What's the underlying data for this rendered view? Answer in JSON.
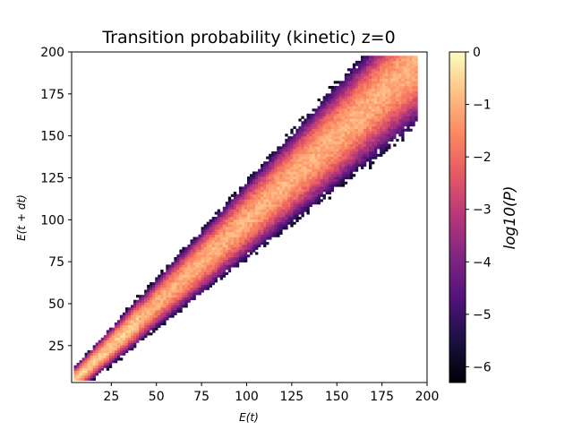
{
  "chart_data": {
    "type": "heatmap",
    "title": "Transition probability (kinetic) z=0",
    "xlabel": "E(t)",
    "ylabel": "E(t + dt)",
    "xlim": [
      3,
      200
    ],
    "ylim": [
      3,
      200
    ],
    "x_ticks": [
      25,
      50,
      75,
      100,
      125,
      150,
      175,
      200
    ],
    "y_ticks": [
      25,
      50,
      75,
      100,
      125,
      150,
      175,
      200
    ],
    "grid": false,
    "colormap": "magma",
    "colorbar": {
      "label": "log10(P)",
      "range": [
        -6.3,
        0
      ],
      "ticks": [
        0,
        -1,
        -2,
        -3,
        -4,
        -5,
        -6
      ]
    },
    "structure": {
      "diagonal": "y = x",
      "x_data_min": 5,
      "x_data_max": 195,
      "peak_log10P_along_diagonal": -1.0,
      "min_log10P": -6.3
    }
  }
}
